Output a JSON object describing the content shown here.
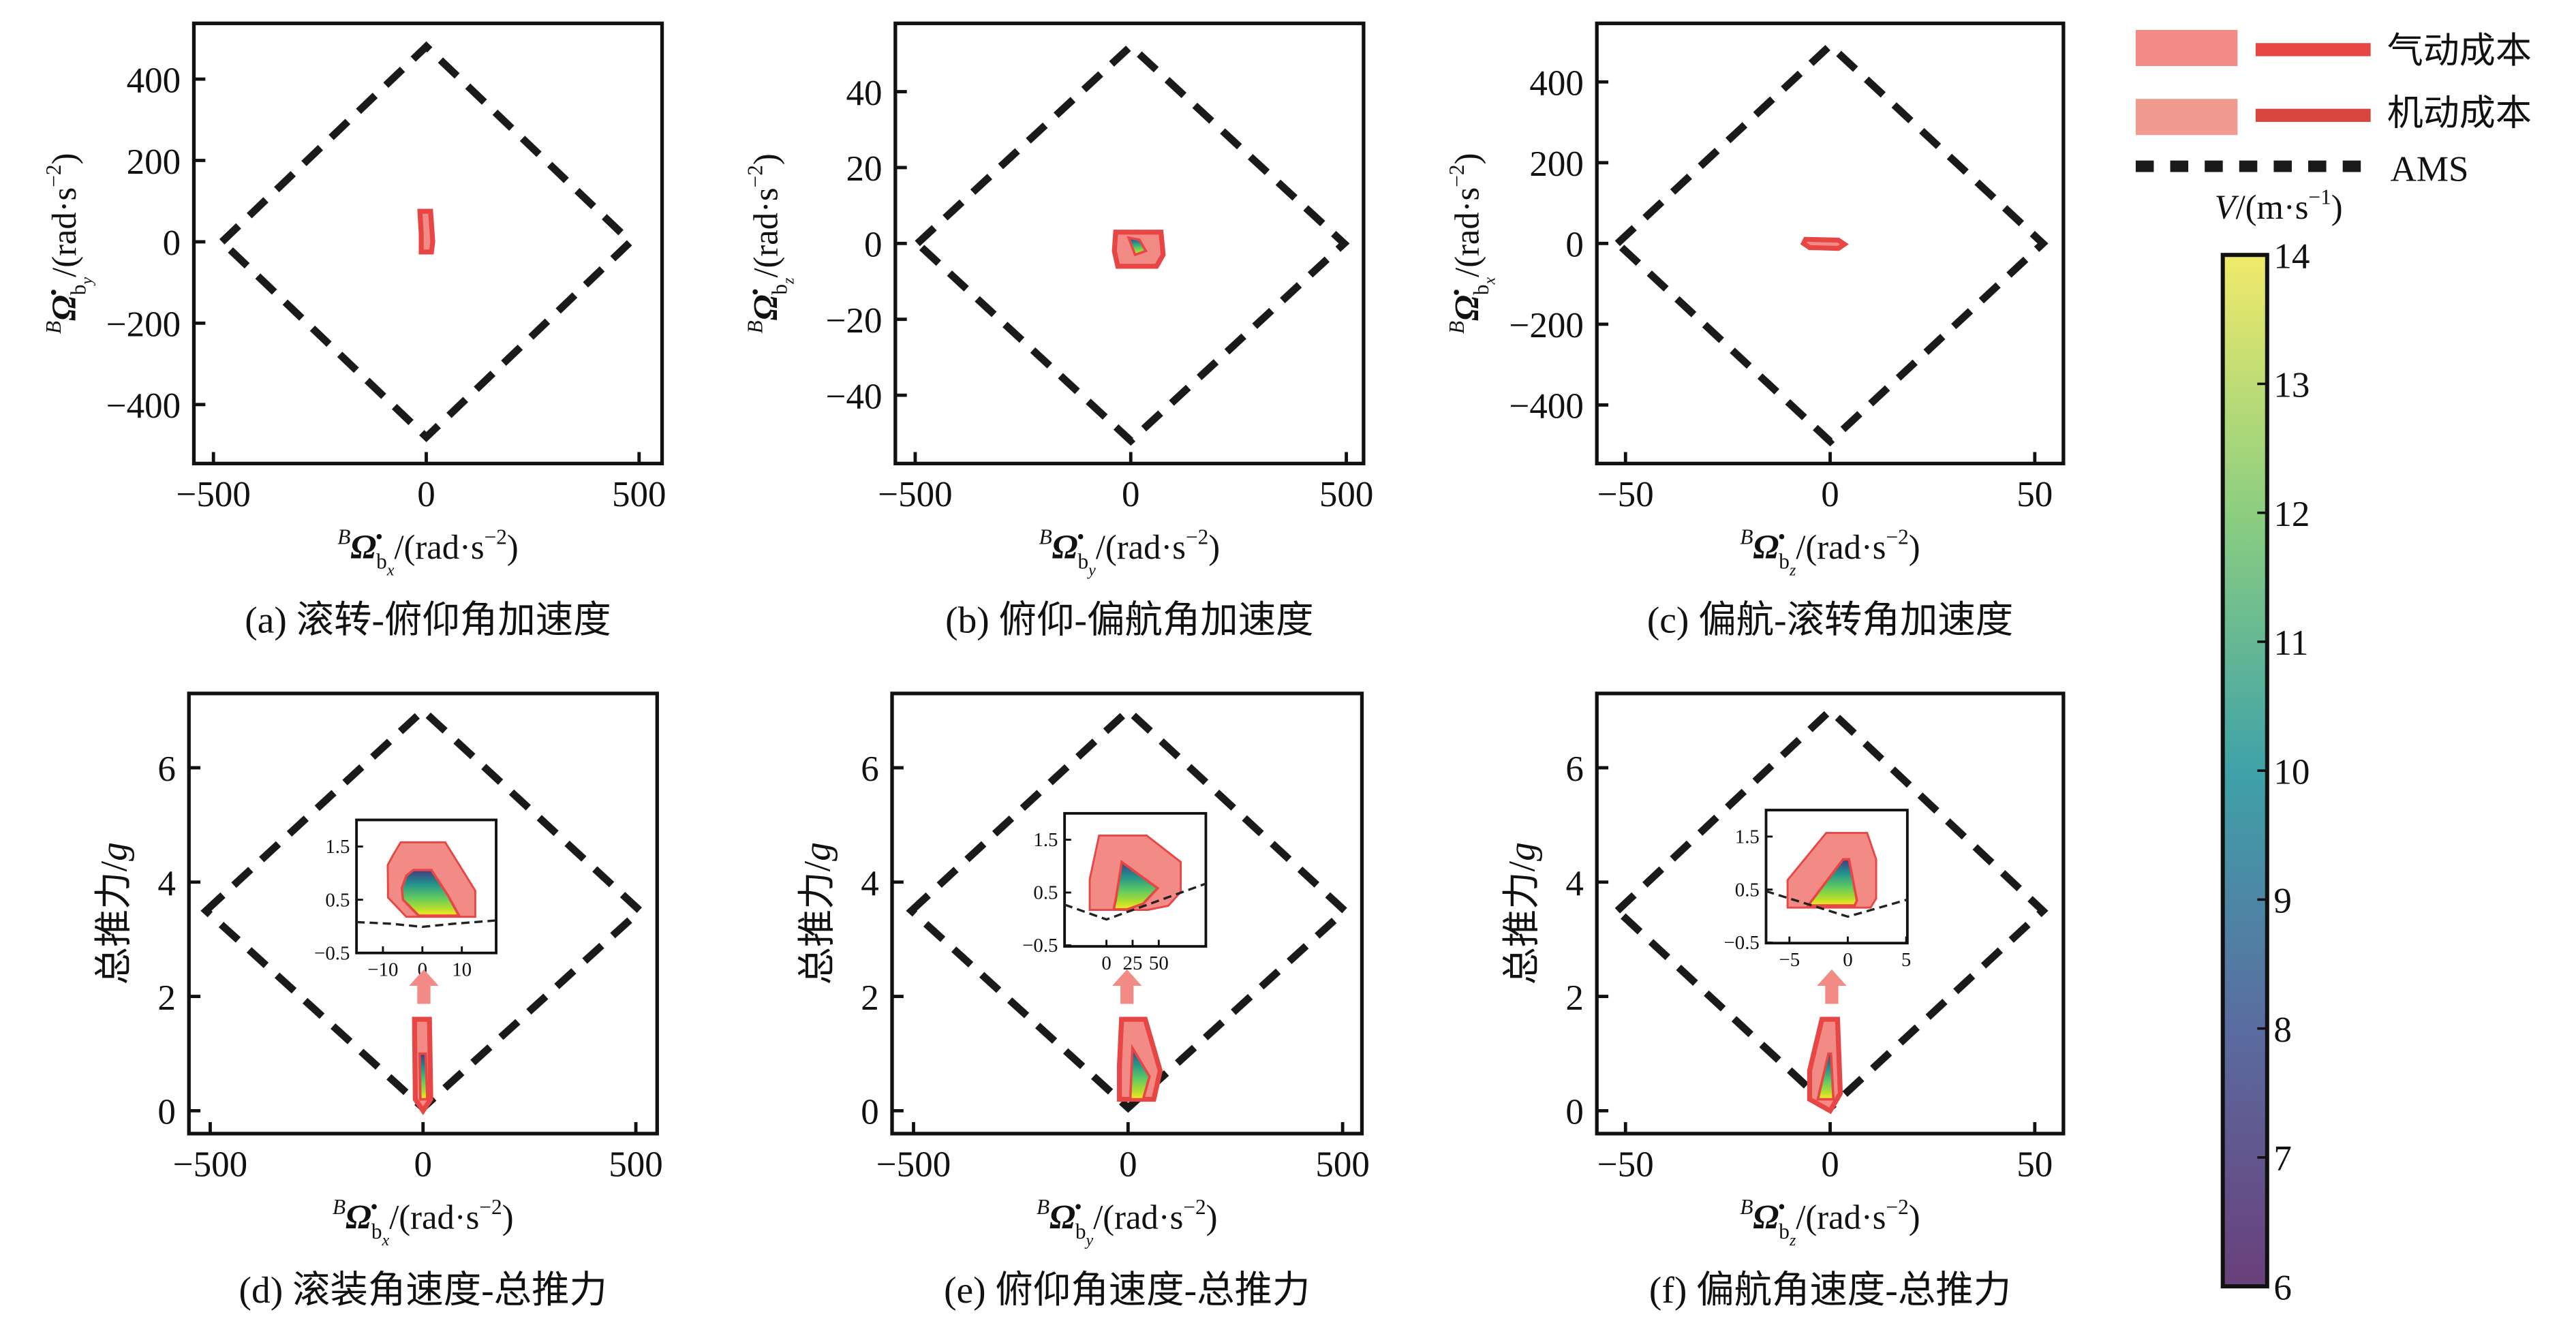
{
  "colors": {
    "aero_fill": "#f28b85",
    "maneuver_fill": "#f09a90",
    "aero_line": "#e84545",
    "maneuver_line": "#d94640",
    "ams": "#1a1a1a",
    "viridis": [
      "#440154",
      "#3b528b",
      "#21918c",
      "#5ec962",
      "#fde725"
    ]
  },
  "legend": {
    "items": [
      {
        "label": "气动成本",
        "type": "patch+line"
      },
      {
        "label": "机动成本",
        "type": "patch+line"
      },
      {
        "label": "AMS",
        "type": "dashed"
      }
    ]
  },
  "colorbar": {
    "label_var": "V",
    "label_unit": "/(m·s",
    "label_exp": "−1",
    "label_close": ")",
    "min": 6,
    "max": 14,
    "ticks": [
      "6",
      "7",
      "8",
      "9",
      "10",
      "11",
      "12",
      "13",
      "14"
    ],
    "colormap": "viridis"
  },
  "chart_data": [
    {
      "id": "a",
      "type": "area",
      "caption": "(a) 滚转-俯仰角加速度",
      "xlabel": {
        "sup": "B",
        "sym": "Ω̇",
        "sub": "b",
        "subsub": "x",
        "unit": "/(rad·s",
        "exp": "−2",
        "close": ")"
      },
      "ylabel": {
        "sup": "B",
        "sym": "Ω̇",
        "sub": "b",
        "subsub": "y",
        "unit": "/(rad·s",
        "exp": "−2",
        "close": ")"
      },
      "xlim": [
        -546,
        554
      ],
      "ylim": [
        -545,
        537
      ],
      "xticks": [
        -500,
        0,
        500
      ],
      "yticks": [
        400,
        200,
        0,
        -200,
        -400
      ],
      "xtick_labels": [
        "−500",
        "0",
        "500"
      ],
      "ytick_labels": [
        "400",
        "200",
        "0",
        "−200",
        "−400"
      ],
      "ams": [
        [
          -480,
          0
        ],
        [
          0,
          480
        ],
        [
          480,
          0
        ],
        [
          0,
          -480
        ]
      ],
      "aero": [
        [
          -15,
          75
        ],
        [
          10,
          75
        ],
        [
          15,
          0
        ],
        [
          12,
          -25
        ],
        [
          -12,
          -25
        ],
        [
          -12,
          20
        ]
      ],
      "velocity": []
    },
    {
      "id": "b",
      "type": "area",
      "caption": "(b) 俯仰-偏航角加速度",
      "xlabel": {
        "sup": "B",
        "sym": "Ω̇",
        "sub": "b",
        "subsub": "y",
        "unit": "/(rad·s",
        "exp": "−2",
        "close": ")"
      },
      "ylabel": {
        "sup": "B",
        "sym": "Ω̇",
        "sub": "b",
        "subsub": "z",
        "unit": "/(rad·s",
        "exp": "−2",
        "close": ")"
      },
      "xlim": [
        -546,
        540
      ],
      "ylim": [
        -58,
        58
      ],
      "xticks": [
        -500,
        0,
        500
      ],
      "yticks": [
        40,
        20,
        0,
        -20,
        -40
      ],
      "xtick_labels": [
        "−500",
        "0",
        "500"
      ],
      "ytick_labels": [
        "40",
        "20",
        "0",
        "−20",
        "−40"
      ],
      "ams": [
        [
          -495,
          0
        ],
        [
          0,
          52
        ],
        [
          495,
          0
        ],
        [
          0,
          -52
        ]
      ],
      "aero": [
        [
          -35,
          3
        ],
        [
          70,
          3
        ],
        [
          75,
          -3
        ],
        [
          60,
          -6
        ],
        [
          -30,
          -6
        ],
        [
          -38,
          -2
        ]
      ],
      "velocity": [
        [
          -5,
          1.5
        ],
        [
          20,
          1
        ],
        [
          35,
          -2
        ],
        [
          10,
          -3
        ]
      ]
    },
    {
      "id": "c",
      "type": "area",
      "caption": "(c) 偏航-滚转角加速度",
      "xlabel": {
        "sup": "B",
        "sym": "Ω̇",
        "sub": "b",
        "subsub": "z",
        "unit": "/(rad·s",
        "exp": "−2",
        "close": ")"
      },
      "ylabel": {
        "sup": "B",
        "sym": "Ω̇",
        "sub": "b",
        "subsub": "x",
        "unit": "/(rad·s",
        "exp": "−2",
        "close": ")"
      },
      "xlim": [
        -57,
        57
      ],
      "ylim": [
        -545,
        545
      ],
      "xticks": [
        -50,
        0,
        50
      ],
      "yticks": [
        400,
        200,
        0,
        -200,
        -400
      ],
      "xtick_labels": [
        "−50",
        "0",
        "50"
      ],
      "ytick_labels": [
        "400",
        "200",
        "0",
        "−200",
        "−400"
      ],
      "ams": [
        [
          -52,
          0
        ],
        [
          0,
          490
        ],
        [
          52,
          0
        ],
        [
          0,
          -490
        ]
      ],
      "aero": [
        [
          -6,
          10
        ],
        [
          2,
          8
        ],
        [
          3.5,
          -2
        ],
        [
          2,
          -12
        ],
        [
          -5,
          -10
        ],
        [
          -6.5,
          0
        ]
      ],
      "velocity": []
    },
    {
      "id": "d",
      "type": "area",
      "caption": "(d) 滚装角速度-总推力",
      "xlabel": {
        "sup": "B",
        "sym": "Ω̇",
        "sub": "b",
        "subsub": "x",
        "unit": "/(rad·s",
        "exp": "−2",
        "close": ")"
      },
      "ylabel_text": "总推力/",
      "ylabel_var": "g",
      "xlim": [
        -550,
        550
      ],
      "ylim": [
        -0.4,
        7.3
      ],
      "xticks": [
        -500,
        0,
        500
      ],
      "yticks": [
        6,
        4,
        2,
        0
      ],
      "xtick_labels": [
        "−500",
        "0",
        "500"
      ],
      "ytick_labels": [
        "6",
        "4",
        "2",
        "0"
      ],
      "ams": [
        [
          -510,
          3.5
        ],
        [
          0,
          7
        ],
        [
          510,
          3.5
        ],
        [
          0,
          0.05
        ]
      ],
      "aero": [
        [
          -20,
          1.6
        ],
        [
          15,
          1.6
        ],
        [
          18,
          0.2
        ],
        [
          0,
          0
        ],
        [
          -18,
          0.2
        ]
      ],
      "velocity": [
        [
          -8,
          1.0
        ],
        [
          6,
          1.0
        ],
        [
          10,
          0.2
        ],
        [
          -6,
          0.2
        ]
      ],
      "inset": {
        "xlim": [
          -16.7,
          18.7
        ],
        "ylim": [
          -0.5,
          2.0
        ],
        "xticks": [
          -10,
          0,
          10
        ],
        "xtick_labels": [
          "−10",
          "0",
          "10"
        ],
        "yticks": [
          1.5,
          0.5,
          -0.5
        ],
        "ytick_labels": [
          "1.5",
          "0.5",
          "−0.5"
        ],
        "aero": [
          [
            -5.5,
            1.58
          ],
          [
            5.8,
            1.58
          ],
          [
            13.4,
            0.67
          ],
          [
            13.4,
            0.18
          ],
          [
            -4.1,
            0.18
          ],
          [
            -8.7,
            0.54
          ],
          [
            -8.8,
            1.15
          ],
          [
            -7.6,
            1.32
          ]
        ],
        "velocity": [
          [
            -2.3,
            1.06
          ],
          [
            2.3,
            1.06
          ],
          [
            6.4,
            0.59
          ],
          [
            9.3,
            0.2
          ],
          [
            -0.9,
            0.2
          ],
          [
            -4.9,
            0.5
          ],
          [
            -5.2,
            0.72
          ],
          [
            -4.1,
            0.95
          ]
        ],
        "ams": [
          [
            -16.7,
            0.08
          ],
          [
            -8,
            0.05
          ],
          [
            0,
            -0.01
          ],
          [
            8,
            0.05
          ],
          [
            18.7,
            0.11
          ]
        ]
      }
    },
    {
      "id": "e",
      "type": "area",
      "caption": "(e) 俯仰角速度-总推力",
      "xlabel": {
        "sup": "B",
        "sym": "Ω̇",
        "sub": "b",
        "subsub": "y",
        "unit": "/(rad·s",
        "exp": "−2",
        "close": ")"
      },
      "ylabel_text": "总推力/",
      "ylabel_var": "g",
      "xlim": [
        -550,
        545
      ],
      "ylim": [
        -0.4,
        7.3
      ],
      "xticks": [
        -500,
        0,
        500
      ],
      "yticks": [
        6,
        4,
        2,
        0
      ],
      "xtick_labels": [
        "−500",
        "0",
        "500"
      ],
      "ytick_labels": [
        "6",
        "4",
        "2",
        "0"
      ],
      "ams": [
        [
          -505,
          3.5
        ],
        [
          0,
          7
        ],
        [
          505,
          3.5
        ],
        [
          0,
          0.05
        ]
      ],
      "aero": [
        [
          -15,
          1.6
        ],
        [
          40,
          1.6
        ],
        [
          75,
          0.7
        ],
        [
          60,
          0.2
        ],
        [
          -20,
          0.2
        ],
        [
          -20,
          0.8
        ]
      ],
      "velocity": [
        [
          10,
          1.1
        ],
        [
          50,
          0.6
        ],
        [
          35,
          0.2
        ],
        [
          5,
          0.2
        ]
      ],
      "inset": {
        "xlim": [
          -40,
          95
        ],
        "ylim": [
          -0.52,
          2.0
        ],
        "xticks": [
          0,
          25,
          50
        ],
        "xtick_labels": [
          "0",
          "25",
          "50"
        ],
        "yticks": [
          1.5,
          0.5,
          -0.5
        ],
        "ytick_labels": [
          "1.5",
          "0.5",
          "−0.5"
        ],
        "aero": [
          [
            -7,
            1.58
          ],
          [
            38.5,
            1.58
          ],
          [
            71,
            1.08
          ],
          [
            71,
            0.51
          ],
          [
            59,
            0.25
          ],
          [
            39.6,
            0.17
          ],
          [
            -16,
            0.17
          ],
          [
            -16,
            0.75
          ]
        ],
        "velocity": [
          [
            14.6,
            1.08
          ],
          [
            49,
            0.58
          ],
          [
            35,
            0.29
          ],
          [
            20,
            0.18
          ],
          [
            7,
            0.18
          ],
          [
            9,
            0.37
          ]
        ],
        "ams": [
          [
            -40,
            0.27
          ],
          [
            0,
            -0.01
          ],
          [
            95,
            0.67
          ]
        ]
      }
    },
    {
      "id": "f",
      "type": "area",
      "caption": "(f) 偏航角速度-总推力",
      "xlabel": {
        "sup": "B",
        "sym": "Ω̇",
        "sub": "b",
        "subsub": "z",
        "unit": "/(rad·s",
        "exp": "−2",
        "close": ")"
      },
      "ylabel_text": "总推力/",
      "ylabel_var": "g",
      "xlim": [
        -57,
        57
      ],
      "ylim": [
        -0.4,
        7.3
      ],
      "xticks": [
        -50,
        0,
        50
      ],
      "yticks": [
        6,
        4,
        2,
        0
      ],
      "xtick_labels": [
        "−50",
        "0",
        "50"
      ],
      "ytick_labels": [
        "6",
        "4",
        "2",
        "0"
      ],
      "ams": [
        [
          -52,
          3.5
        ],
        [
          0,
          7
        ],
        [
          52,
          3.5
        ],
        [
          0,
          0.05
        ]
      ],
      "aero": [
        [
          -2,
          1.6
        ],
        [
          1.8,
          1.6
        ],
        [
          2.5,
          0.3
        ],
        [
          0,
          0
        ],
        [
          -5,
          0.2
        ],
        [
          -5,
          0.7
        ]
      ],
      "velocity": [
        [
          -0.4,
          1.0
        ],
        [
          0.2,
          1.0
        ],
        [
          0.8,
          0.2
        ],
        [
          -3,
          0.2
        ]
      ],
      "inset": {
        "xlim": [
          -7,
          5.1
        ],
        "ylim": [
          -0.51,
          2.0
        ],
        "xticks": [
          -5,
          0,
          5
        ],
        "xtick_labels": [
          "−5",
          "0",
          "5"
        ],
        "yticks": [
          1.5,
          0.5,
          -0.5
        ],
        "ytick_labels": [
          "1.5",
          "0.5",
          "−0.5"
        ],
        "aero": [
          [
            -1.85,
            1.57
          ],
          [
            1.65,
            1.57
          ],
          [
            2.43,
            1.07
          ],
          [
            2.43,
            0.33
          ],
          [
            1.95,
            0.16
          ],
          [
            -5.15,
            0.16
          ],
          [
            -5.15,
            0.68
          ]
        ],
        "velocity": [
          [
            -0.4,
            1.07
          ],
          [
            0.1,
            1.07
          ],
          [
            0.78,
            0.29
          ],
          [
            0.58,
            0.2
          ],
          [
            -3.4,
            0.2
          ]
        ],
        "ams": [
          [
            -7,
            0.47
          ],
          [
            0,
            -0.01
          ],
          [
            5.1,
            0.31
          ]
        ]
      }
    }
  ]
}
